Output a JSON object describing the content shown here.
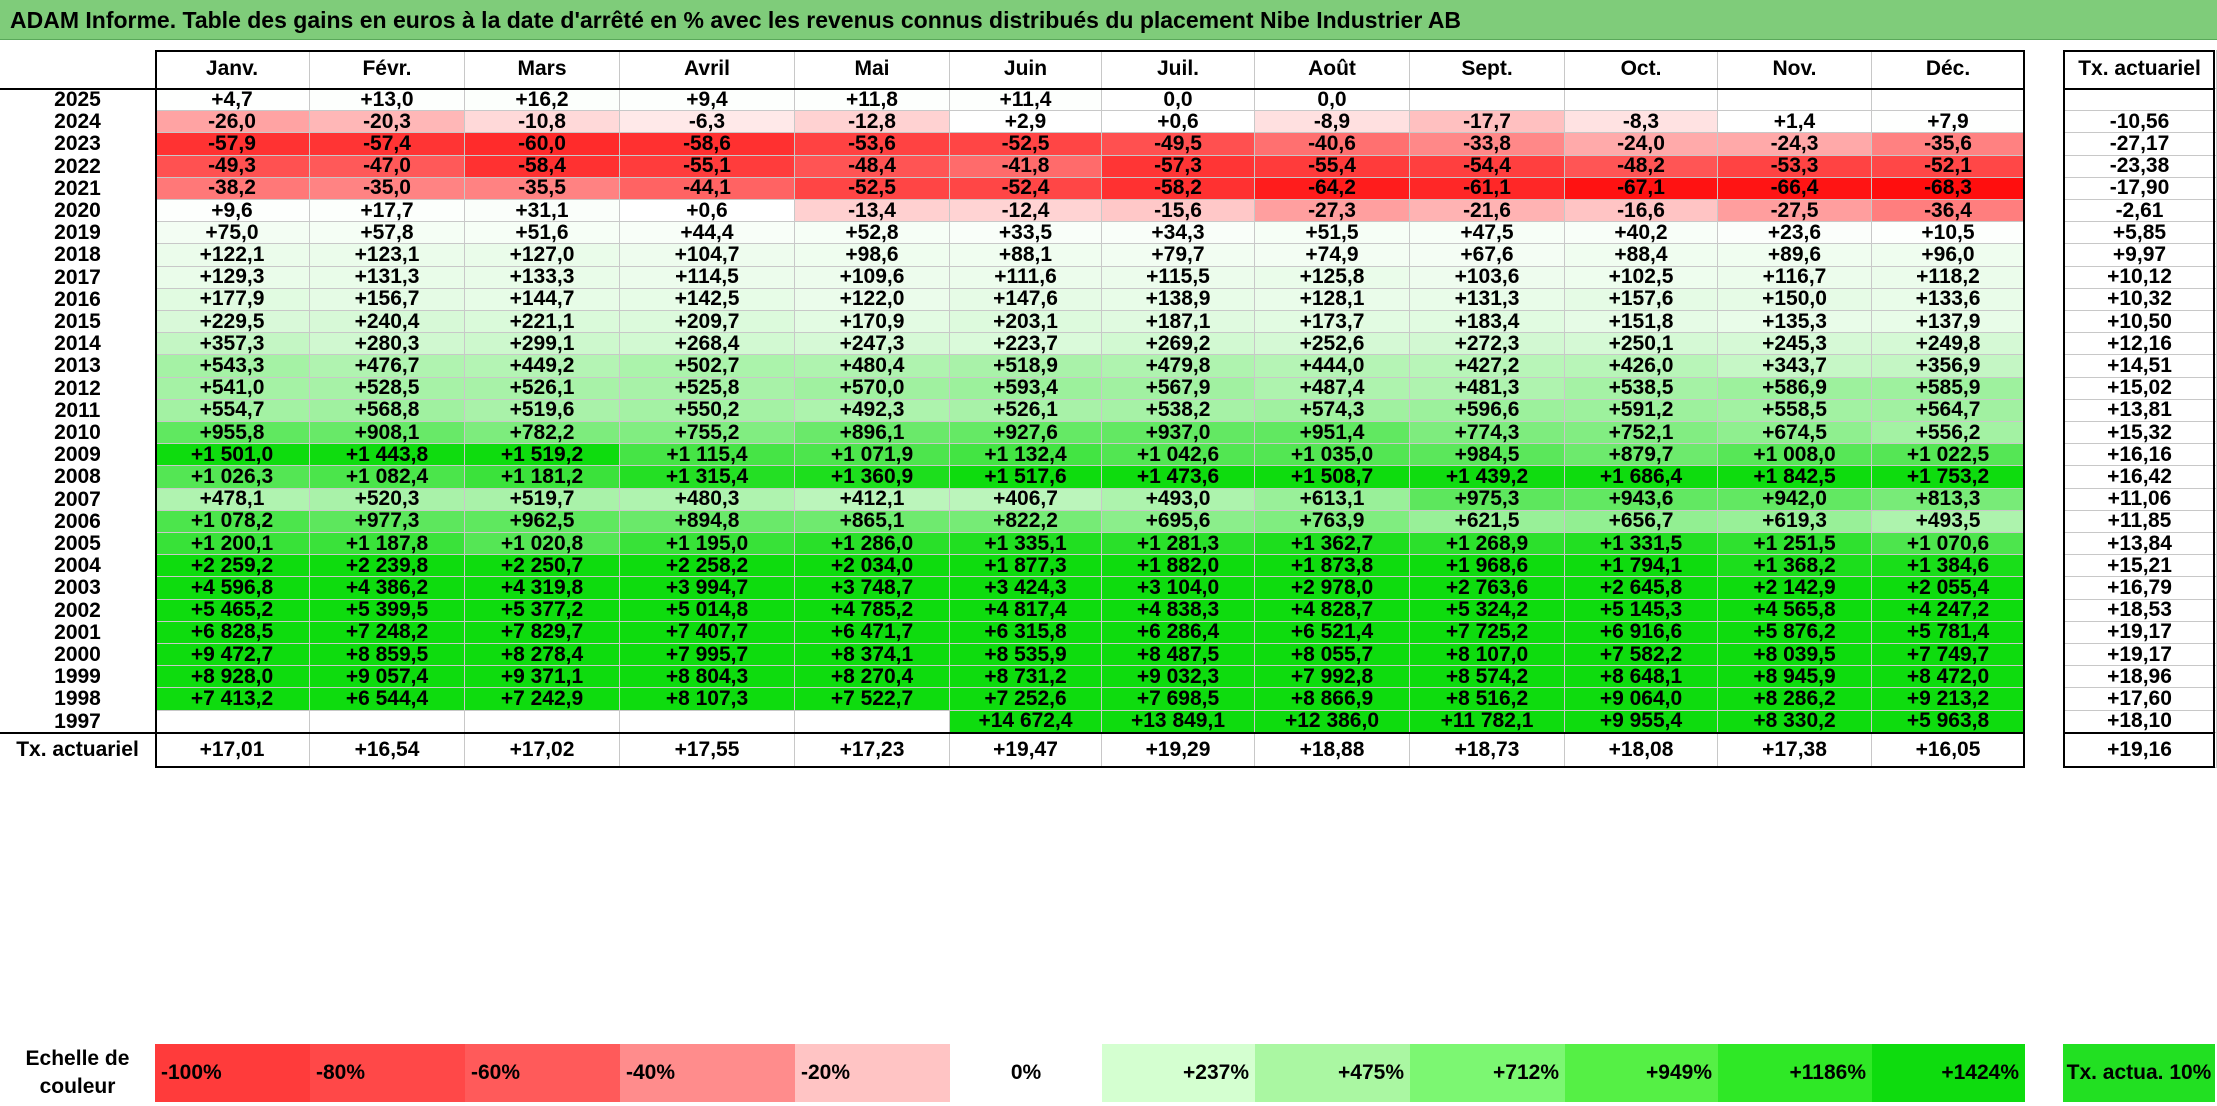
{
  "title": "ADAM Informe. Table des gains en euros à la date d'arrêté en % avec les revenus connus distribués du placement Nibe Industrier AB",
  "months": [
    "Janv.",
    "Févr.",
    "Mars",
    "Avril",
    "Mai",
    "Juin",
    "Juil.",
    "Août",
    "Sept.",
    "Oct.",
    "Nov.",
    "Déc."
  ],
  "rate_header": "Tx. actuariel",
  "rows": [
    {
      "year": "2025",
      "vals": [
        "+4,7",
        "+13,0",
        "+16,2",
        "+9,4",
        "+11,8",
        "+11,4",
        "0,0",
        "0,0",
        "",
        "",
        "",
        ""
      ],
      "rate": ""
    },
    {
      "year": "2024",
      "vals": [
        "-26,0",
        "-20,3",
        "-10,8",
        "-6,3",
        "-12,8",
        "+2,9",
        "+0,6",
        "-8,9",
        "-17,7",
        "-8,3",
        "+1,4",
        "+7,9"
      ],
      "rate": "-10,56"
    },
    {
      "year": "2023",
      "vals": [
        "-57,9",
        "-57,4",
        "-60,0",
        "-58,6",
        "-53,6",
        "-52,5",
        "-49,5",
        "-40,6",
        "-33,8",
        "-24,0",
        "-24,3",
        "-35,6"
      ],
      "rate": "-27,17"
    },
    {
      "year": "2022",
      "vals": [
        "-49,3",
        "-47,0",
        "-58,4",
        "-55,1",
        "-48,4",
        "-41,8",
        "-57,3",
        "-55,4",
        "-54,4",
        "-48,2",
        "-53,3",
        "-52,1"
      ],
      "rate": "-23,38"
    },
    {
      "year": "2021",
      "vals": [
        "-38,2",
        "-35,0",
        "-35,5",
        "-44,1",
        "-52,5",
        "-52,4",
        "-58,2",
        "-64,2",
        "-61,1",
        "-67,1",
        "-66,4",
        "-68,3"
      ],
      "rate": "-17,90"
    },
    {
      "year": "2020",
      "vals": [
        "+9,6",
        "+17,7",
        "+31,1",
        "+0,6",
        "-13,4",
        "-12,4",
        "-15,6",
        "-27,3",
        "-21,6",
        "-16,6",
        "-27,5",
        "-36,4"
      ],
      "rate": "-2,61"
    },
    {
      "year": "2019",
      "vals": [
        "+75,0",
        "+57,8",
        "+51,6",
        "+44,4",
        "+52,8",
        "+33,5",
        "+34,3",
        "+51,5",
        "+47,5",
        "+40,2",
        "+23,6",
        "+10,5"
      ],
      "rate": "+5,85"
    },
    {
      "year": "2018",
      "vals": [
        "+122,1",
        "+123,1",
        "+127,0",
        "+104,7",
        "+98,6",
        "+88,1",
        "+79,7",
        "+74,9",
        "+67,6",
        "+88,4",
        "+89,6",
        "+96,0"
      ],
      "rate": "+9,97"
    },
    {
      "year": "2017",
      "vals": [
        "+129,3",
        "+131,3",
        "+133,3",
        "+114,5",
        "+109,6",
        "+111,6",
        "+115,5",
        "+125,8",
        "+103,6",
        "+102,5",
        "+116,7",
        "+118,2"
      ],
      "rate": "+10,12"
    },
    {
      "year": "2016",
      "vals": [
        "+177,9",
        "+156,7",
        "+144,7",
        "+142,5",
        "+122,0",
        "+147,6",
        "+138,9",
        "+128,1",
        "+131,3",
        "+157,6",
        "+150,0",
        "+133,6"
      ],
      "rate": "+10,32"
    },
    {
      "year": "2015",
      "vals": [
        "+229,5",
        "+240,4",
        "+221,1",
        "+209,7",
        "+170,9",
        "+203,1",
        "+187,1",
        "+173,7",
        "+183,4",
        "+151,8",
        "+135,3",
        "+137,9"
      ],
      "rate": "+10,50"
    },
    {
      "year": "2014",
      "vals": [
        "+357,3",
        "+280,3",
        "+299,1",
        "+268,4",
        "+247,3",
        "+223,7",
        "+269,2",
        "+252,6",
        "+272,3",
        "+250,1",
        "+245,3",
        "+249,8"
      ],
      "rate": "+12,16"
    },
    {
      "year": "2013",
      "vals": [
        "+543,3",
        "+476,7",
        "+449,2",
        "+502,7",
        "+480,4",
        "+518,9",
        "+479,8",
        "+444,0",
        "+427,2",
        "+426,0",
        "+343,7",
        "+356,9"
      ],
      "rate": "+14,51"
    },
    {
      "year": "2012",
      "vals": [
        "+541,0",
        "+528,5",
        "+526,1",
        "+525,8",
        "+570,0",
        "+593,4",
        "+567,9",
        "+487,4",
        "+481,3",
        "+538,5",
        "+586,9",
        "+585,9"
      ],
      "rate": "+15,02"
    },
    {
      "year": "2011",
      "vals": [
        "+554,7",
        "+568,8",
        "+519,6",
        "+550,2",
        "+492,3",
        "+526,1",
        "+538,2",
        "+574,3",
        "+596,6",
        "+591,2",
        "+558,5",
        "+564,7"
      ],
      "rate": "+13,81"
    },
    {
      "year": "2010",
      "vals": [
        "+955,8",
        "+908,1",
        "+782,2",
        "+755,2",
        "+896,1",
        "+927,6",
        "+937,0",
        "+951,4",
        "+774,3",
        "+752,1",
        "+674,5",
        "+556,2"
      ],
      "rate": "+15,32"
    },
    {
      "year": "2009",
      "vals": [
        "+1 501,0",
        "+1 443,8",
        "+1 519,2",
        "+1 115,4",
        "+1 071,9",
        "+1 132,4",
        "+1 042,6",
        "+1 035,0",
        "+984,5",
        "+879,7",
        "+1 008,0",
        "+1 022,5"
      ],
      "rate": "+16,16"
    },
    {
      "year": "2008",
      "vals": [
        "+1 026,3",
        "+1 082,4",
        "+1 181,2",
        "+1 315,4",
        "+1 360,9",
        "+1 517,6",
        "+1 473,6",
        "+1 508,7",
        "+1 439,2",
        "+1 686,4",
        "+1 842,5",
        "+1 753,2"
      ],
      "rate": "+16,42"
    },
    {
      "year": "2007",
      "vals": [
        "+478,1",
        "+520,3",
        "+519,7",
        "+480,3",
        "+412,1",
        "+406,7",
        "+493,0",
        "+613,1",
        "+975,3",
        "+943,6",
        "+942,0",
        "+813,3"
      ],
      "rate": "+11,06"
    },
    {
      "year": "2006",
      "vals": [
        "+1 078,2",
        "+977,3",
        "+962,5",
        "+894,8",
        "+865,1",
        "+822,2",
        "+695,6",
        "+763,9",
        "+621,5",
        "+656,7",
        "+619,3",
        "+493,5"
      ],
      "rate": "+11,85"
    },
    {
      "year": "2005",
      "vals": [
        "+1 200,1",
        "+1 187,8",
        "+1 020,8",
        "+1 195,0",
        "+1 286,0",
        "+1 335,1",
        "+1 281,3",
        "+1 362,7",
        "+1 268,9",
        "+1 331,5",
        "+1 251,5",
        "+1 070,6"
      ],
      "rate": "+13,84"
    },
    {
      "year": "2004",
      "vals": [
        "+2 259,2",
        "+2 239,8",
        "+2 250,7",
        "+2 258,2",
        "+2 034,0",
        "+1 877,3",
        "+1 882,0",
        "+1 873,8",
        "+1 968,6",
        "+1 794,1",
        "+1 368,2",
        "+1 384,6"
      ],
      "rate": "+15,21"
    },
    {
      "year": "2003",
      "vals": [
        "+4 596,8",
        "+4 386,2",
        "+4 319,8",
        "+3 994,7",
        "+3 748,7",
        "+3 424,3",
        "+3 104,0",
        "+2 978,0",
        "+2 763,6",
        "+2 645,8",
        "+2 142,9",
        "+2 055,4"
      ],
      "rate": "+16,79"
    },
    {
      "year": "2002",
      "vals": [
        "+5 465,2",
        "+5 399,5",
        "+5 377,2",
        "+5 014,8",
        "+4 785,2",
        "+4 817,4",
        "+4 838,3",
        "+4 828,7",
        "+5 324,2",
        "+5 145,3",
        "+4 565,8",
        "+4 247,2"
      ],
      "rate": "+18,53"
    },
    {
      "year": "2001",
      "vals": [
        "+6 828,5",
        "+7 248,2",
        "+7 829,7",
        "+7 407,7",
        "+6 471,7",
        "+6 315,8",
        "+6 286,4",
        "+6 521,4",
        "+7 725,2",
        "+6 916,6",
        "+5 876,2",
        "+5 781,4"
      ],
      "rate": "+19,17"
    },
    {
      "year": "2000",
      "vals": [
        "+9 472,7",
        "+8 859,5",
        "+8 278,4",
        "+7 995,7",
        "+8 374,1",
        "+8 535,9",
        "+8 487,5",
        "+8 055,7",
        "+8 107,0",
        "+7 582,2",
        "+8 039,5",
        "+7 749,7"
      ],
      "rate": "+19,17"
    },
    {
      "year": "1999",
      "vals": [
        "+8 928,0",
        "+9 057,4",
        "+9 371,1",
        "+8 804,3",
        "+8 270,4",
        "+8 731,2",
        "+9 032,3",
        "+7 992,8",
        "+8 574,2",
        "+8 648,1",
        "+8 945,9",
        "+8 472,0"
      ],
      "rate": "+18,96"
    },
    {
      "year": "1998",
      "vals": [
        "+7 413,2",
        "+6 544,4",
        "+7 242,9",
        "+8 107,3",
        "+7 522,7",
        "+7 252,6",
        "+7 698,5",
        "+8 866,9",
        "+8 516,2",
        "+9 064,0",
        "+8 286,2",
        "+9 213,2"
      ],
      "rate": "+17,60"
    },
    {
      "year": "1997",
      "vals": [
        "",
        "",
        "",
        "",
        "",
        "+14 672,4",
        "+13 849,1",
        "+12 386,0",
        "+11 782,1",
        "+9 955,4",
        "+8 330,2",
        "+5 963,8"
      ],
      "rate": "+18,10"
    }
  ],
  "footer": {
    "label": "Tx. actuariel",
    "vals": [
      "+17,01",
      "+16,54",
      "+17,02",
      "+17,55",
      "+17,23",
      "+19,47",
      "+19,29",
      "+18,88",
      "+18,73",
      "+18,08",
      "+17,38",
      "+16,05"
    ],
    "rate": "+19,16"
  },
  "legend": {
    "label": "Echelle de couleur",
    "items": [
      {
        "text": "-100%",
        "color": "#ff3b3b",
        "align": "left"
      },
      {
        "text": "-80%",
        "color": "#ff4848",
        "align": "left"
      },
      {
        "text": "-60%",
        "color": "#ff5a5a",
        "align": "left"
      },
      {
        "text": "-40%",
        "color": "#ff8c8c",
        "align": "left"
      },
      {
        "text": "-20%",
        "color": "#ffc4c4",
        "align": "left"
      },
      {
        "text": "0%",
        "color": "#ffffff",
        "align": "center"
      },
      {
        "text": "+237%",
        "color": "#d4ffd0",
        "align": "right"
      },
      {
        "text": "+475%",
        "color": "#aaf7a2",
        "align": "right"
      },
      {
        "text": "+712%",
        "color": "#7cf772",
        "align": "right"
      },
      {
        "text": "+949%",
        "color": "#55f045",
        "align": "right"
      },
      {
        "text": "+1186%",
        "color": "#2fe826",
        "align": "right"
      },
      {
        "text": "+1424%",
        "color": "#0edc0e",
        "align": "right"
      }
    ],
    "rate_label": "Tx. actua. 10%",
    "rate_color": "#22e022"
  },
  "colors": {
    "title_bg": "#7fcc7a"
  }
}
